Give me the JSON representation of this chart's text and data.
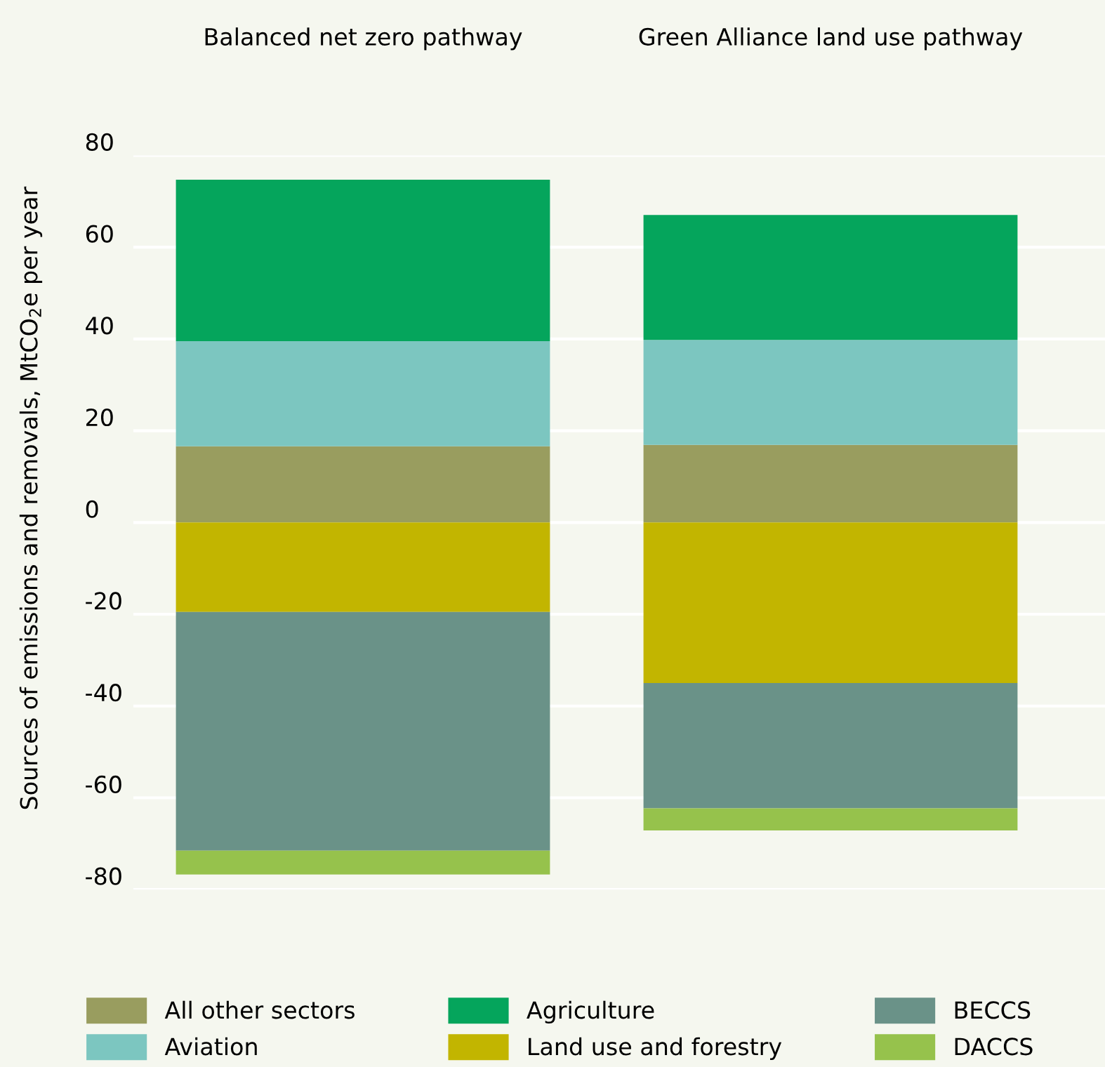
{
  "chart_data": {
    "type": "bar",
    "stacked": true,
    "categories": [
      "Balanced net zero pathway",
      "Green Alliance land use pathway"
    ],
    "ylabel": "Sources of emissions and removals, MtCO$_{2}$e per year",
    "series": [
      {
        "name": "All other sectors",
        "color": "#999d5f",
        "values": [
          16.6,
          16.9
        ]
      },
      {
        "name": "Aviation",
        "color": "#7cc6c0",
        "values": [
          22.9,
          22.9
        ]
      },
      {
        "name": "Agriculture",
        "color": "#05a55c",
        "values": [
          35.2,
          27.2
        ]
      },
      {
        "name": "Land use and forestry",
        "color": "#c2b500",
        "values": [
          -19.5,
          -35.0
        ]
      },
      {
        "name": "BECCS",
        "color": "#6a9288",
        "values": [
          -52.0,
          -27.3
        ]
      },
      {
        "name": "DACCS",
        "color": "#96c24c",
        "values": [
          -5.2,
          -4.8
        ]
      }
    ],
    "ylim": [
      -80,
      80
    ],
    "yticks": [
      -80,
      -60,
      -40,
      -20,
      0,
      20,
      40,
      60,
      80
    ],
    "grid": "y",
    "legend": "bottom"
  }
}
